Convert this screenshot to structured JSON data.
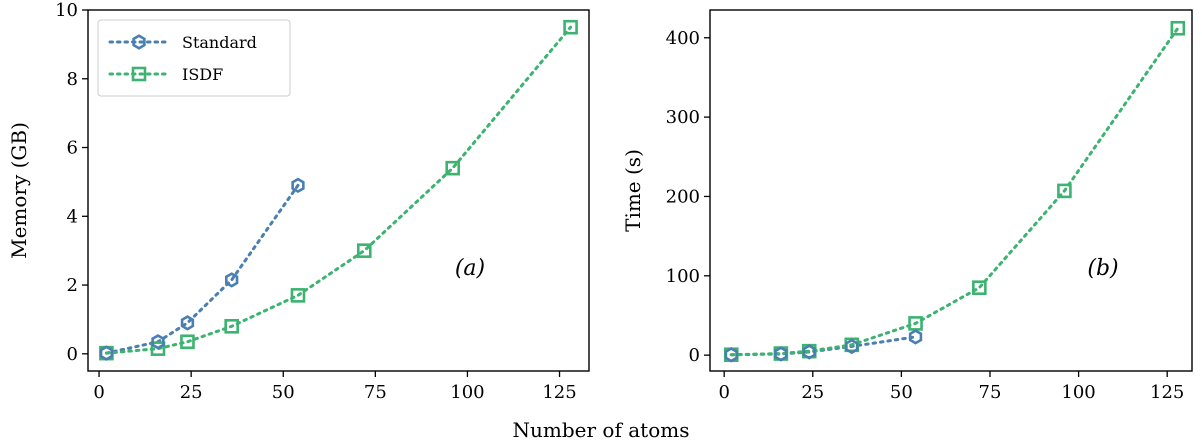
{
  "figure": {
    "xlabel": "Number of atoms"
  },
  "colors": {
    "standard": "#4a7fb0",
    "isdf": "#3cb371"
  },
  "chart_data": [
    {
      "type": "line",
      "panel_label": "(a)",
      "xlabel": "",
      "ylabel": "Memory (GB)",
      "xlim": [
        -3,
        133
      ],
      "ylim": [
        -0.5,
        10
      ],
      "xticks": [
        0,
        25,
        50,
        75,
        100,
        125
      ],
      "yticks": [
        0,
        2,
        4,
        6,
        8,
        10
      ],
      "grid": false,
      "legend": {
        "placement": "top-left"
      },
      "series": [
        {
          "name": "Standard",
          "marker": "hexagon",
          "linestyle": "dotted",
          "x": [
            2,
            16,
            24,
            36,
            54
          ],
          "y": [
            0.02,
            0.35,
            0.9,
            2.15,
            4.9
          ]
        },
        {
          "name": "ISDF",
          "marker": "square",
          "linestyle": "dotted",
          "x": [
            2,
            16,
            24,
            36,
            54,
            72,
            96,
            128
          ],
          "y": [
            0.02,
            0.15,
            0.35,
            0.8,
            1.7,
            3.0,
            5.4,
            9.5
          ]
        }
      ]
    },
    {
      "type": "line",
      "panel_label": "(b)",
      "xlabel": "",
      "ylabel": "Time (s)",
      "xlim": [
        -4,
        132
      ],
      "ylim": [
        -20,
        435
      ],
      "xticks": [
        0,
        25,
        50,
        75,
        100,
        125
      ],
      "yticks": [
        0,
        100,
        200,
        300,
        400
      ],
      "grid": false,
      "series": [
        {
          "name": "Standard",
          "marker": "hexagon",
          "linestyle": "dotted",
          "x": [
            2,
            16,
            24,
            36,
            54
          ],
          "y": [
            0.5,
            1.5,
            4,
            11,
            23
          ]
        },
        {
          "name": "ISDF",
          "marker": "square",
          "linestyle": "dotted",
          "x": [
            2,
            16,
            24,
            36,
            54,
            72,
            96,
            128
          ],
          "y": [
            0.5,
            2,
            5,
            13,
            40,
            85,
            207,
            412
          ]
        }
      ]
    }
  ]
}
